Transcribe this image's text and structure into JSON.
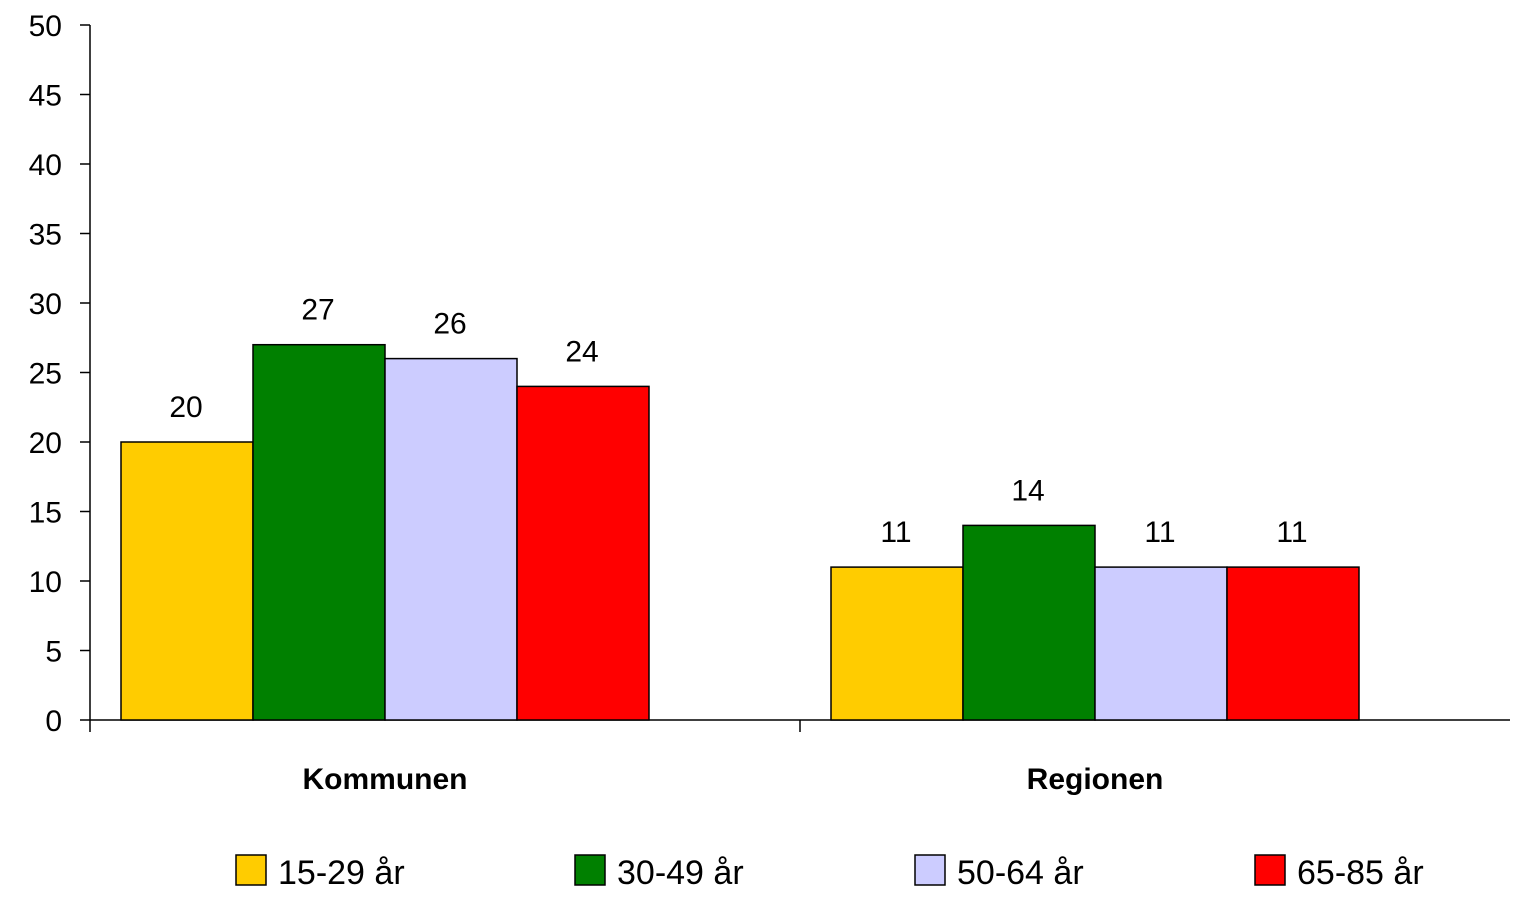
{
  "chart_data": {
    "type": "bar",
    "title": "",
    "xlabel": "",
    "ylabel": "",
    "categories": [
      "Kommunen",
      "Regionen"
    ],
    "series": [
      {
        "name": "15-29 år",
        "color": "#FFCC00",
        "values": [
          20,
          11
        ]
      },
      {
        "name": "30-49 år",
        "color": "#008000",
        "values": [
          27,
          14
        ]
      },
      {
        "name": "50-64 år",
        "color": "#CCCCFF",
        "values": [
          26,
          11
        ]
      },
      {
        "name": "65-85 år",
        "color": "#FF0000",
        "values": [
          24,
          11
        ]
      }
    ],
    "ylim": [
      0,
      50
    ],
    "yticks": [
      0,
      5,
      10,
      15,
      20,
      25,
      30,
      35,
      40,
      45,
      50
    ],
    "data_labels": true,
    "grid": false,
    "legend_position": "bottom"
  }
}
